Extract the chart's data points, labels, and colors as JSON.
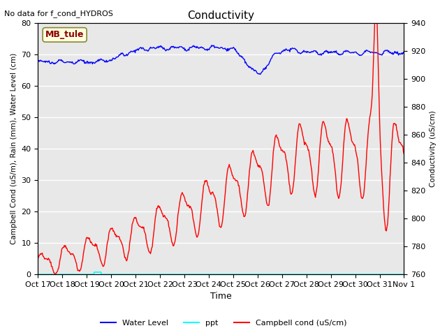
{
  "title": "Conductivity",
  "top_left_text": "No data for f_cond_HYDROS",
  "ylabel_left": "Campbell Cond (uS/m), Rain (mm), Water Level (cm)",
  "ylabel_right": "Conductivity (uS/cm)",
  "xlabel": "Time",
  "ylim_left": [
    0,
    80
  ],
  "ylim_right": [
    760,
    940
  ],
  "annotation": "MB_tule",
  "bg_color": "#e8e8e8",
  "legend_entries": [
    "Water Level",
    "ppt",
    "Campbell cond (uS/cm)"
  ],
  "x_tick_labels": [
    "Oct 17",
    "Oct 18",
    "Oct 19",
    "Oct 20",
    "Oct 21",
    "Oct 22",
    "Oct 23",
    "Oct 24",
    "Oct 25",
    "Oct 26",
    "Oct 27",
    "Oct 28",
    "Oct 29",
    "Oct 30",
    "Oct 31",
    "Nov 1"
  ],
  "num_points": 600
}
